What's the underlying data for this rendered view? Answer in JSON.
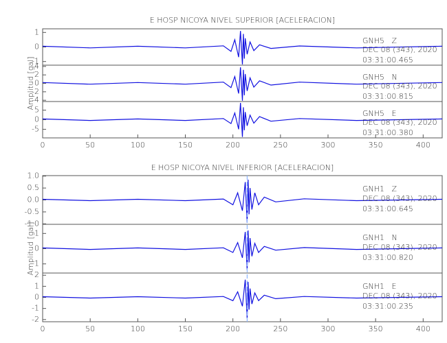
{
  "chart_data": [
    {
      "type": "line",
      "title": "E HOSP NICOYA NIVEL SUPERIOR [ACELERACION]",
      "y_label": "Amplitud [gal]",
      "color": "#1010e0",
      "xlim": [
        0,
        420
      ],
      "xticks": [
        0,
        50,
        100,
        150,
        200,
        250,
        300,
        350,
        400
      ],
      "x": [
        0,
        50,
        100,
        150,
        190,
        198,
        202,
        206,
        208,
        210,
        211,
        212,
        213,
        215,
        218,
        222,
        228,
        240,
        270,
        330,
        420
      ],
      "panels": [
        {
          "station": "GNH5   Z",
          "date": "DEC 08 (343), 2020",
          "time": "03:31:00.465",
          "ylim": [
            -1.25,
            1.25
          ],
          "yticks": [
            -1,
            0,
            1
          ],
          "values": [
            0.05,
            -0.06,
            0.05,
            -0.06,
            0.08,
            -0.3,
            0.5,
            -0.7,
            1.1,
            -1.2,
            0.9,
            -0.8,
            0.6,
            -0.5,
            0.35,
            -0.25,
            0.15,
            -0.1,
            0.07,
            -0.06,
            0.05
          ]
        },
        {
          "station": "GNH5   N",
          "date": "DEC 08 (343), 2020",
          "time": "03:31:00.815",
          "ylim": [
            -4.3,
            4.3
          ],
          "yticks": [
            -4,
            -2,
            0,
            2,
            4
          ],
          "values": [
            0.2,
            -0.2,
            0.2,
            -0.2,
            0.3,
            -1.0,
            1.6,
            -2.4,
            3.8,
            -4.1,
            3.2,
            -2.8,
            2.2,
            -1.8,
            1.3,
            -0.9,
            0.6,
            -0.4,
            0.3,
            -0.2,
            0.2
          ]
        },
        {
          "station": "GNH5   E",
          "date": "DEC 08 (343), 2020",
          "time": "03:31:00.380",
          "ylim": [
            -9.5,
            9.5
          ],
          "yticks": [
            -5,
            0,
            5
          ],
          "values": [
            0.4,
            -0.4,
            0.4,
            -0.4,
            0.6,
            -2.0,
            3.5,
            -5.0,
            8.8,
            -9.0,
            6.5,
            -5.5,
            4.0,
            -3.2,
            2.4,
            -1.8,
            1.6,
            -0.8,
            0.6,
            -0.4,
            0.4
          ]
        }
      ]
    },
    {
      "type": "line",
      "title": "E HOSP NICOYA NIVEL INFERIOR [ACELERACION]",
      "y_label": "Amplitud [gal]",
      "color": "#1010e0",
      "pick_x": 215,
      "pick_color": "#8ab4ff",
      "xlim": [
        0,
        420
      ],
      "xticks": [
        0,
        50,
        100,
        150,
        200,
        250,
        300,
        350,
        400
      ],
      "x": [
        0,
        50,
        100,
        150,
        190,
        200,
        205,
        210,
        213,
        215,
        216,
        217,
        218,
        220,
        223,
        227,
        233,
        245,
        275,
        330,
        420
      ],
      "panels": [
        {
          "station": "GNH1   Z",
          "date": "DEC 08 (343), 2020",
          "time": "03:31:00.645",
          "ylim": [
            -1.02,
            1.02
          ],
          "yticks": [
            {
              "value": -1,
              "label": "-1.0"
            },
            {
              "value": -0.5,
              "label": "-0.5"
            },
            {
              "value": 0,
              "label": "0.0"
            },
            {
              "value": 0.5,
              "label": "0.5"
            },
            {
              "value": 1,
              "label": "1.0"
            }
          ],
          "values": [
            0.03,
            -0.03,
            0.03,
            -0.03,
            0.04,
            -0.2,
            0.3,
            -0.45,
            0.75,
            -0.95,
            0.85,
            -0.6,
            0.5,
            -0.4,
            0.3,
            -0.2,
            0.12,
            -0.08,
            0.05,
            -0.03,
            0.03
          ]
        },
        {
          "station": "GNH1   N",
          "date": "DEC 08 (343), 2020",
          "time": "03:31:00.820",
          "ylim": [
            -1.6,
            1.6
          ],
          "yticks": [
            -1,
            0,
            1
          ],
          "values": [
            0.05,
            -0.05,
            0.05,
            -0.05,
            0.06,
            -0.25,
            0.4,
            -0.6,
            1.1,
            -1.4,
            1.2,
            -0.9,
            0.7,
            -0.5,
            0.35,
            -0.25,
            0.15,
            -0.1,
            0.07,
            -0.05,
            0.05
          ]
        },
        {
          "station": "GNH1   E",
          "date": "DEC 08 (343), 2020",
          "time": "03:31:00.235",
          "ylim": [
            -2.2,
            2.2
          ],
          "yticks": [
            -2,
            -1,
            0,
            1,
            2
          ],
          "values": [
            0.06,
            -0.06,
            0.06,
            -0.06,
            0.08,
            -0.3,
            0.5,
            -0.8,
            1.6,
            -1.9,
            1.4,
            -1.1,
            0.8,
            -0.6,
            0.4,
            -0.3,
            0.2,
            -0.12,
            0.08,
            -0.06,
            0.06
          ]
        }
      ]
    }
  ]
}
